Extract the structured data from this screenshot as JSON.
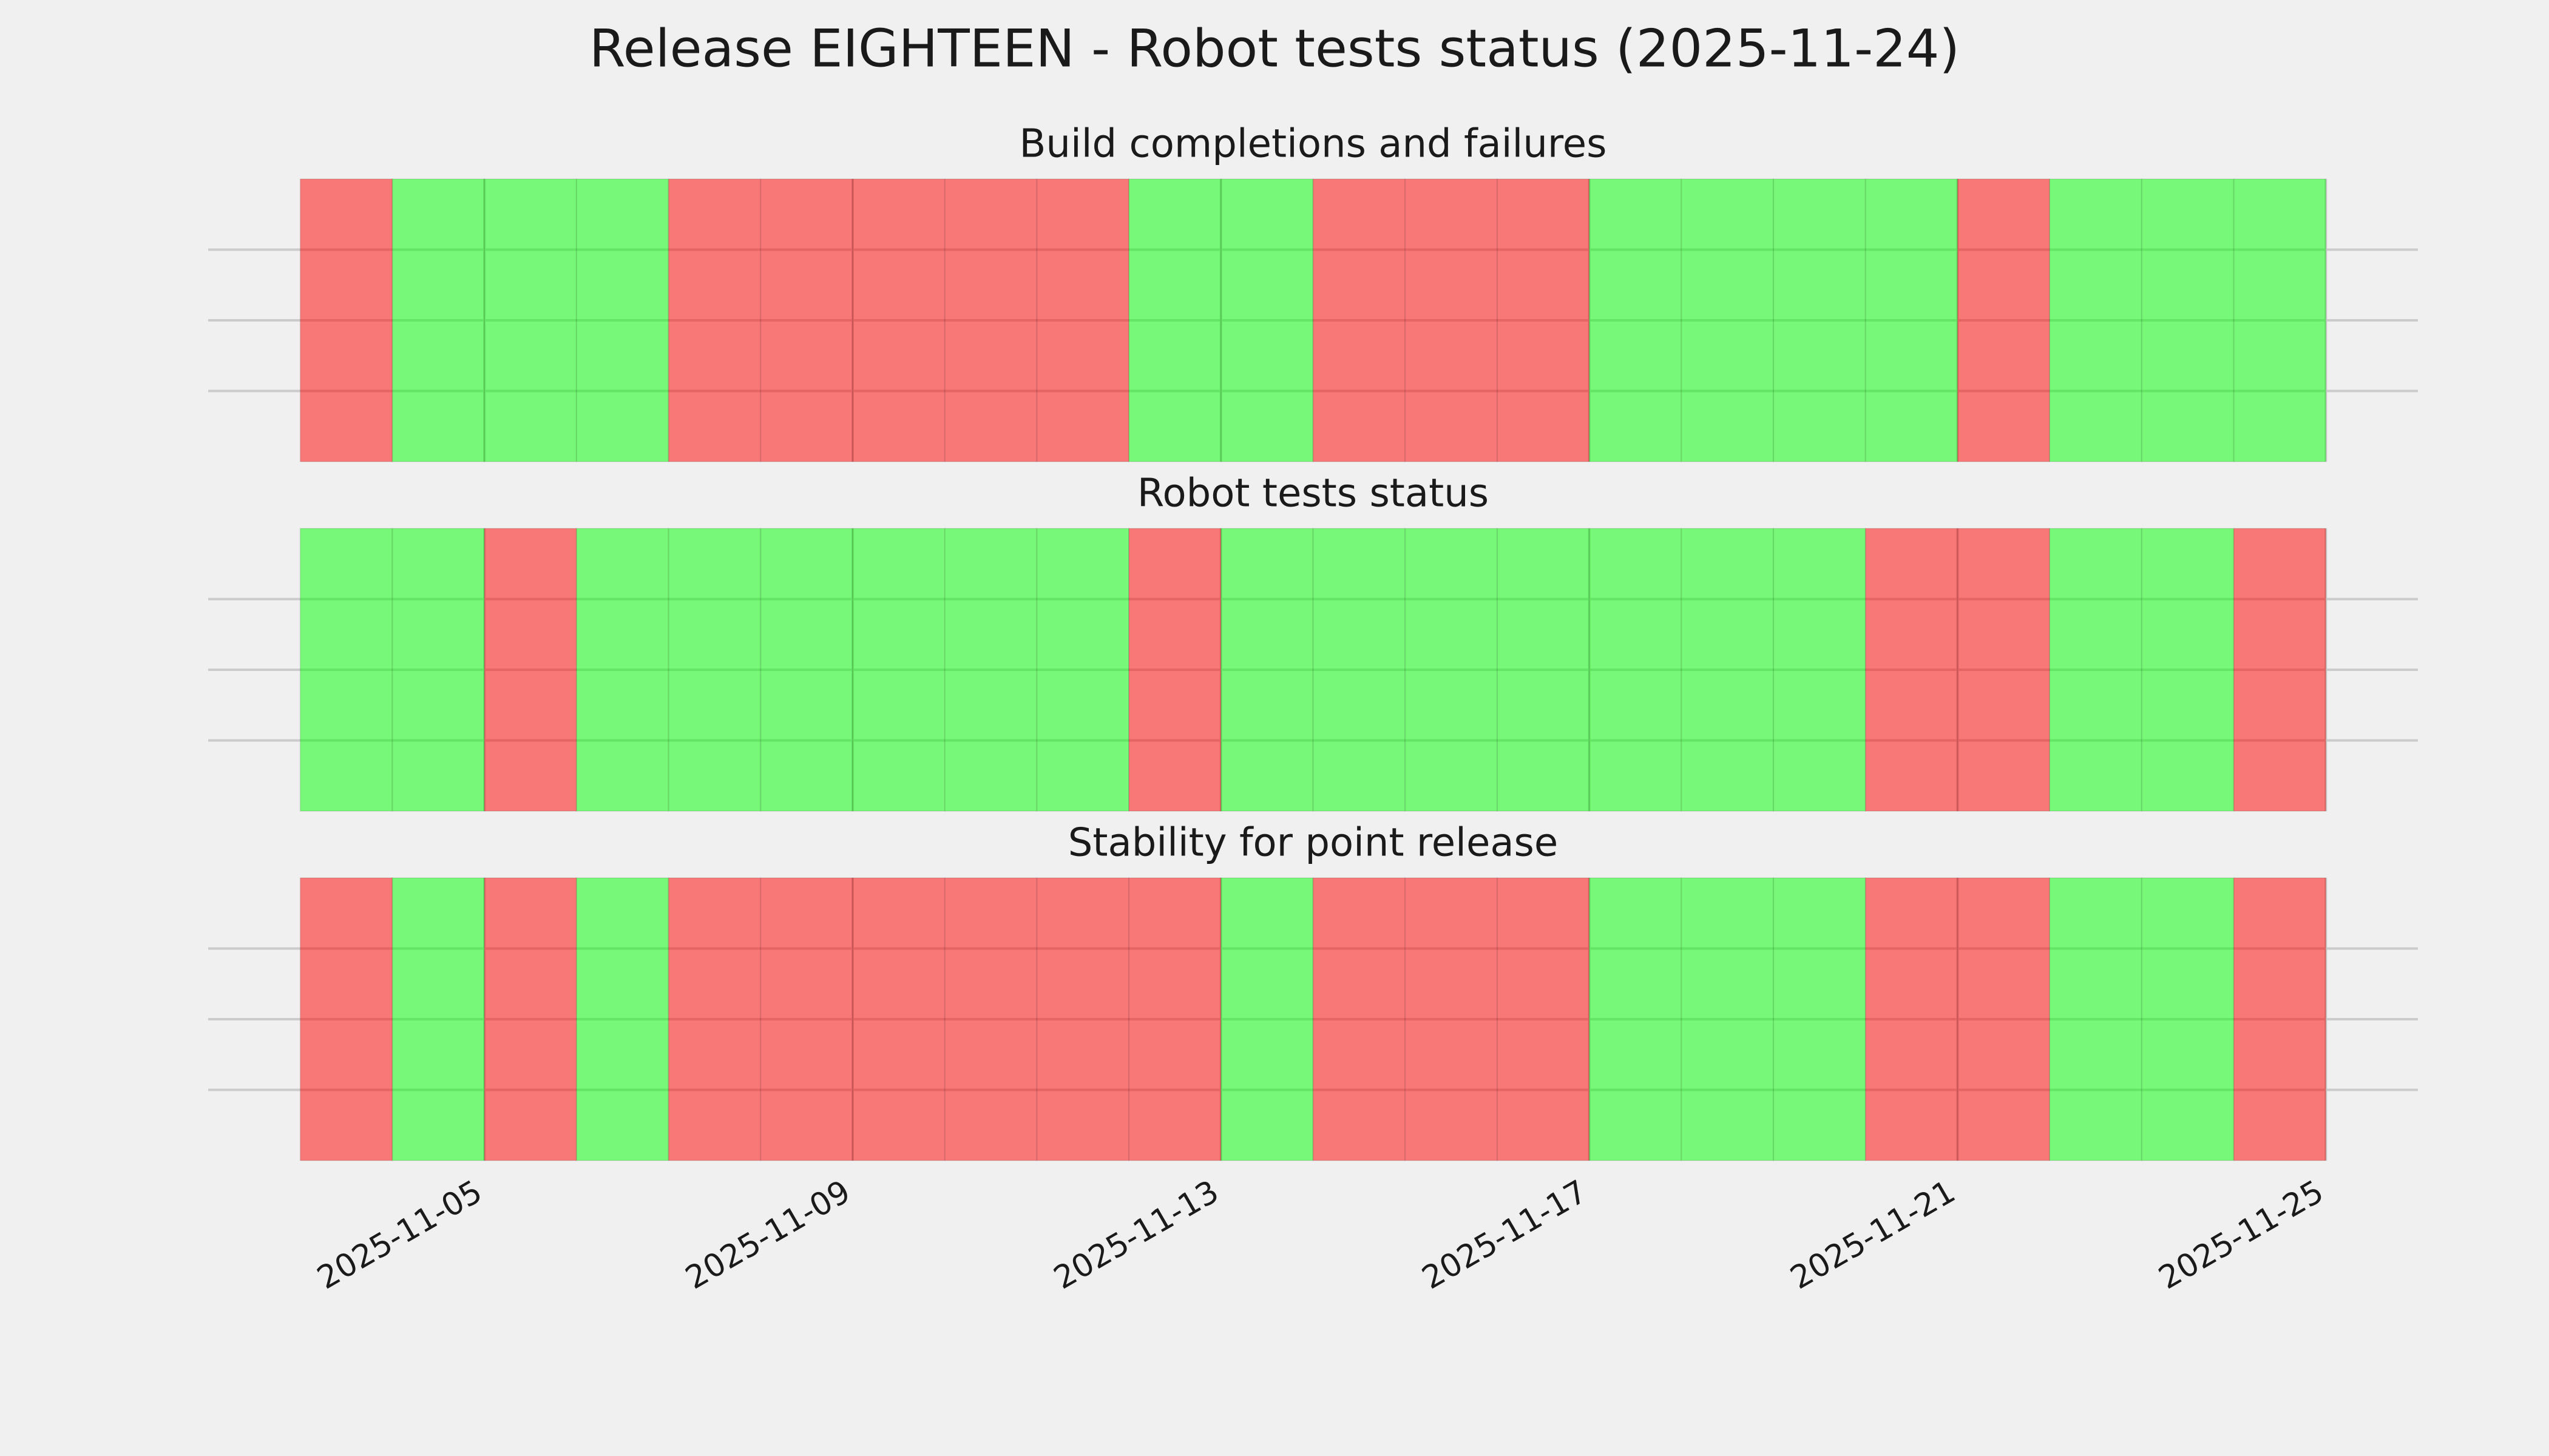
{
  "title": "Release EIGHTEEN - Robot tests status (2025-11-24)",
  "chart_data": [
    {
      "type": "status",
      "title": "Build completions and failures",
      "x": [
        "2025-11-03",
        "2025-11-04",
        "2025-11-05",
        "2025-11-06",
        "2025-11-07",
        "2025-11-08",
        "2025-11-09",
        "2025-11-10",
        "2025-11-11",
        "2025-11-12",
        "2025-11-13",
        "2025-11-14",
        "2025-11-15",
        "2025-11-16",
        "2025-11-17",
        "2025-11-18",
        "2025-11-19",
        "2025-11-20",
        "2025-11-21",
        "2025-11-22",
        "2025-11-23",
        "2025-11-24"
      ],
      "values": [
        0,
        1,
        1,
        1,
        0,
        0,
        0,
        0,
        0,
        1,
        1,
        0,
        0,
        0,
        1,
        1,
        1,
        1,
        0,
        1,
        1,
        1
      ],
      "status_colors": [
        "#ff0000",
        "#00ff00"
      ],
      "alpha": 0.5,
      "xlim": [
        "2025-11-02",
        "2025-11-26"
      ],
      "ylim": [
        0,
        1
      ],
      "yticks": [
        0.25,
        0.5,
        0.75
      ],
      "xticks": [
        "2025-11-05",
        "2025-11-09",
        "2025-11-13",
        "2025-11-17",
        "2025-11-21",
        "2025-11-25"
      ],
      "grid": true
    },
    {
      "type": "status",
      "title": "Robot tests status",
      "x": [
        "2025-11-03",
        "2025-11-04",
        "2025-11-05",
        "2025-11-06",
        "2025-11-07",
        "2025-11-08",
        "2025-11-09",
        "2025-11-10",
        "2025-11-11",
        "2025-11-12",
        "2025-11-13",
        "2025-11-14",
        "2025-11-15",
        "2025-11-16",
        "2025-11-17",
        "2025-11-18",
        "2025-11-19",
        "2025-11-20",
        "2025-11-21",
        "2025-11-22",
        "2025-11-23",
        "2025-11-24"
      ],
      "values": [
        1,
        1,
        0,
        1,
        1,
        1,
        1,
        1,
        1,
        0,
        1,
        1,
        1,
        1,
        1,
        1,
        1,
        0,
        0,
        1,
        1,
        0
      ],
      "status_colors": [
        "#ff0000",
        "#00ff00"
      ],
      "alpha": 0.5,
      "xlim": [
        "2025-11-02",
        "2025-11-26"
      ],
      "ylim": [
        0,
        1
      ],
      "yticks": [
        0.25,
        0.5,
        0.75
      ],
      "xticks": [
        "2025-11-05",
        "2025-11-09",
        "2025-11-13",
        "2025-11-17",
        "2025-11-21",
        "2025-11-25"
      ],
      "grid": true
    },
    {
      "type": "status",
      "title": "Stability for point release",
      "x": [
        "2025-11-03",
        "2025-11-04",
        "2025-11-05",
        "2025-11-06",
        "2025-11-07",
        "2025-11-08",
        "2025-11-09",
        "2025-11-10",
        "2025-11-11",
        "2025-11-12",
        "2025-11-13",
        "2025-11-14",
        "2025-11-15",
        "2025-11-16",
        "2025-11-17",
        "2025-11-18",
        "2025-11-19",
        "2025-11-20",
        "2025-11-21",
        "2025-11-22",
        "2025-11-23",
        "2025-11-24"
      ],
      "values": [
        0,
        1,
        0,
        1,
        0,
        0,
        0,
        0,
        0,
        0,
        1,
        0,
        0,
        0,
        1,
        1,
        1,
        0,
        0,
        1,
        1,
        0
      ],
      "status_colors": [
        "#ff0000",
        "#00ff00"
      ],
      "alpha": 0.5,
      "xlim": [
        "2025-11-02",
        "2025-11-26"
      ],
      "ylim": [
        0,
        1
      ],
      "yticks": [
        0.25,
        0.5,
        0.75
      ],
      "xticks": [
        "2025-11-05",
        "2025-11-09",
        "2025-11-13",
        "2025-11-17",
        "2025-11-21",
        "2025-11-25"
      ],
      "grid": true
    }
  ]
}
